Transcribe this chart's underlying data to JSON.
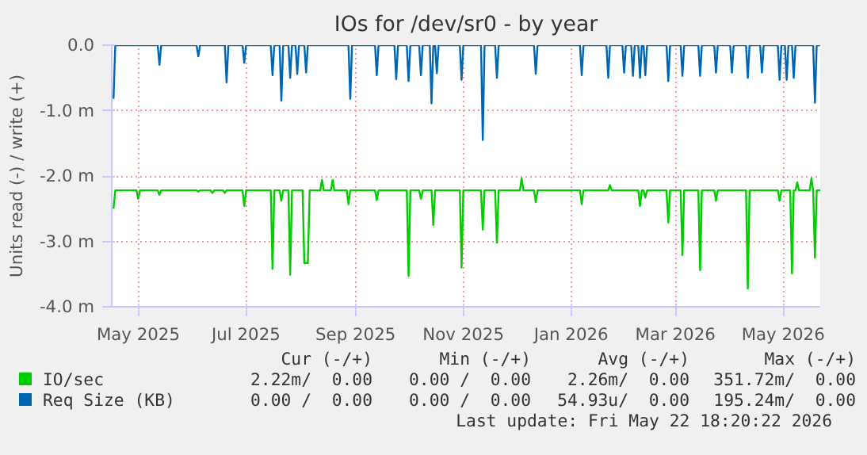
{
  "chart_data": {
    "type": "line",
    "title": "IOs for /dev/sr0 - by year",
    "ylabel": "Units read (-) / write (+)",
    "xlim": [
      "2025-04-16",
      "2026-05-22"
    ],
    "ylim": [
      -4.0,
      0.0
    ],
    "xticks": [
      {
        "value": "2025-05-01",
        "label": "May 2025"
      },
      {
        "value": "2025-07-01",
        "label": "Jul 2025"
      },
      {
        "value": "2025-09-01",
        "label": "Sep 2025"
      },
      {
        "value": "2025-11-01",
        "label": "Nov 2025"
      },
      {
        "value": "2026-01-01",
        "label": "Jan 2026"
      },
      {
        "value": "2026-03-01",
        "label": "Mar 2026"
      },
      {
        "value": "2026-05-01",
        "label": "May 2026"
      }
    ],
    "yticks": [
      {
        "value": 0,
        "label": "0.0"
      },
      {
        "value": -1,
        "label": "-1.0 m"
      },
      {
        "value": -2,
        "label": "-2.0 m"
      },
      {
        "value": -3,
        "label": "-3.0 m"
      },
      {
        "value": -4,
        "label": "-4.0 m"
      }
    ],
    "grid": true,
    "legend": "bottom",
    "marker": "none",
    "line_style": "solid",
    "series": [
      {
        "name": "IO/sec",
        "color": "#00cc00",
        "x": [
          "2025-04-17",
          "2025-04-18",
          "2025-04-30",
          "2025-05-01",
          "2025-05-02",
          "2025-05-12",
          "2025-05-13",
          "2025-05-14",
          "2025-06-03",
          "2025-06-04",
          "2025-06-05",
          "2025-06-11",
          "2025-06-12",
          "2025-06-13",
          "2025-06-18",
          "2025-06-19",
          "2025-06-20",
          "2025-06-29",
          "2025-06-30",
          "2025-07-01",
          "2025-07-15",
          "2025-07-16",
          "2025-07-17",
          "2025-07-20",
          "2025-07-21",
          "2025-07-22",
          "2025-07-25",
          "2025-07-26",
          "2025-07-27",
          "2025-08-02",
          "2025-08-03",
          "2025-08-05",
          "2025-08-06",
          "2025-08-12",
          "2025-08-13",
          "2025-08-14",
          "2025-08-18",
          "2025-08-19",
          "2025-08-20",
          "2025-08-27",
          "2025-08-28",
          "2025-08-29",
          "2025-09-12",
          "2025-09-13",
          "2025-09-14",
          "2025-09-30",
          "2025-10-01",
          "2025-10-02",
          "2025-10-07",
          "2025-10-08",
          "2025-10-09",
          "2025-10-14",
          "2025-10-15",
          "2025-10-16",
          "2025-10-30",
          "2025-10-31",
          "2025-11-01",
          "2025-11-11",
          "2025-11-12",
          "2025-11-13",
          "2025-11-19",
          "2025-11-20",
          "2025-11-21",
          "2025-12-03",
          "2025-12-04",
          "2025-12-05",
          "2025-12-11",
          "2025-12-12",
          "2025-12-13",
          "2026-01-06",
          "2026-01-07",
          "2026-01-08",
          "2026-01-22",
          "2026-01-23",
          "2026-01-24",
          "2026-02-08",
          "2026-02-09",
          "2026-02-10",
          "2026-02-11",
          "2026-02-12",
          "2026-02-13",
          "2026-02-24",
          "2026-02-25",
          "2026-02-26",
          "2026-03-04",
          "2026-03-05",
          "2026-03-06",
          "2026-03-14",
          "2026-03-15",
          "2026-03-16",
          "2026-03-23",
          "2026-03-24",
          "2026-03-25",
          "2026-04-10",
          "2026-04-11",
          "2026-04-12",
          "2026-04-28",
          "2026-04-29",
          "2026-04-30",
          "2026-05-05",
          "2026-05-06",
          "2026-05-07",
          "2026-05-08",
          "2026-05-09",
          "2026-05-10",
          "2026-05-16",
          "2026-05-17",
          "2026-05-18",
          "2026-05-19",
          "2026-05-20",
          "2026-05-22"
        ],
        "values": [
          -2.5,
          -2.22,
          -2.22,
          -2.35,
          -2.22,
          -2.22,
          -2.29,
          -2.22,
          -2.22,
          -2.24,
          -2.22,
          -2.22,
          -2.26,
          -2.22,
          -2.22,
          -2.26,
          -2.22,
          -2.22,
          -2.46,
          -2.22,
          -2.22,
          -3.42,
          -2.22,
          -2.22,
          -2.38,
          -2.22,
          -2.22,
          -3.51,
          -2.22,
          -2.22,
          -3.33,
          -3.33,
          -2.22,
          -2.22,
          -2.06,
          -2.22,
          -2.22,
          -2.06,
          -2.22,
          -2.22,
          -2.43,
          -2.22,
          -2.22,
          -2.37,
          -2.22,
          -2.22,
          -3.53,
          -2.22,
          -2.22,
          -2.35,
          -2.22,
          -2.22,
          -2.75,
          -2.22,
          -2.22,
          -3.4,
          -2.22,
          -2.22,
          -2.82,
          -2.22,
          -2.22,
          -3.02,
          -2.22,
          -2.22,
          -2.04,
          -2.22,
          -2.22,
          -2.4,
          -2.22,
          -2.22,
          -2.43,
          -2.22,
          -2.22,
          -2.14,
          -2.22,
          -2.22,
          -2.46,
          -2.22,
          -2.22,
          -2.33,
          -2.22,
          -2.22,
          -2.71,
          -2.22,
          -2.22,
          -3.21,
          -2.22,
          -2.22,
          -3.44,
          -2.22,
          -2.22,
          -2.38,
          -2.22,
          -2.22,
          -3.72,
          -2.22,
          -2.22,
          -2.38,
          -2.22,
          -2.22,
          -3.49,
          -2.22,
          -2.22,
          -2.1,
          -2.22,
          -2.22,
          -2.04,
          -2.22,
          -3.25,
          -2.22,
          -2.22
        ]
      },
      {
        "name": "Req Size (KB)",
        "color": "#0066b3",
        "x": [
          "2025-04-17",
          "2025-04-18",
          "2025-05-12",
          "2025-05-13",
          "2025-05-14",
          "2025-06-03",
          "2025-06-04",
          "2025-06-05",
          "2025-06-19",
          "2025-06-20",
          "2025-06-21",
          "2025-06-29",
          "2025-06-30",
          "2025-07-01",
          "2025-07-15",
          "2025-07-16",
          "2025-07-17",
          "2025-07-20",
          "2025-07-21",
          "2025-07-22",
          "2025-07-25",
          "2025-07-26",
          "2025-07-27",
          "2025-07-29",
          "2025-07-30",
          "2025-07-31",
          "2025-08-03",
          "2025-08-04",
          "2025-08-05",
          "2025-08-28",
          "2025-08-29",
          "2025-08-30",
          "2025-09-12",
          "2025-09-13",
          "2025-09-14",
          "2025-09-23",
          "2025-09-24",
          "2025-09-25",
          "2025-09-30",
          "2025-10-01",
          "2025-10-02",
          "2025-10-07",
          "2025-10-08",
          "2025-10-09",
          "2025-10-13",
          "2025-10-14",
          "2025-10-15",
          "2025-10-16",
          "2025-10-17",
          "2025-10-18",
          "2025-10-30",
          "2025-10-31",
          "2025-11-01",
          "2025-11-11",
          "2025-11-12",
          "2025-11-13",
          "2025-11-19",
          "2025-11-20",
          "2025-11-21",
          "2025-12-11",
          "2025-12-12",
          "2025-12-13",
          "2026-01-06",
          "2026-01-07",
          "2026-01-08",
          "2026-01-21",
          "2026-01-22",
          "2026-01-23",
          "2026-01-30",
          "2026-01-31",
          "2026-02-01",
          "2026-02-04",
          "2026-02-05",
          "2026-02-06",
          "2026-02-08",
          "2026-02-09",
          "2026-02-10",
          "2026-02-11",
          "2026-02-12",
          "2026-02-13",
          "2026-02-24",
          "2026-02-25",
          "2026-02-26",
          "2026-03-04",
          "2026-03-05",
          "2026-03-06",
          "2026-03-14",
          "2026-03-15",
          "2026-03-16",
          "2026-03-23",
          "2026-03-24",
          "2026-03-25",
          "2026-04-01",
          "2026-04-02",
          "2026-04-03",
          "2026-04-10",
          "2026-04-11",
          "2026-04-12",
          "2026-04-18",
          "2026-04-19",
          "2026-04-20",
          "2026-04-28",
          "2026-04-29",
          "2026-04-30",
          "2026-05-02",
          "2026-05-03",
          "2026-05-04",
          "2026-05-06",
          "2026-05-07",
          "2026-05-08",
          "2026-05-18",
          "2026-05-19",
          "2026-05-20",
          "2026-05-22"
        ],
        "values": [
          -0.82,
          0,
          0,
          -0.3,
          0,
          0,
          -0.17,
          0,
          0,
          -0.57,
          0,
          0,
          -0.27,
          0,
          0,
          -0.46,
          0,
          0,
          -0.85,
          0,
          0,
          -0.5,
          0,
          0,
          -0.44,
          0,
          0,
          -0.42,
          0,
          0,
          -0.82,
          0,
          0,
          -0.46,
          0,
          0,
          -0.52,
          0,
          0,
          -0.55,
          0,
          0,
          -0.46,
          0,
          0,
          -0.89,
          0,
          0,
          -0.43,
          0,
          0,
          -0.53,
          0,
          0,
          -1.45,
          0,
          0,
          -0.5,
          0,
          0,
          -0.44,
          0,
          0,
          -0.46,
          0,
          0,
          -0.5,
          0,
          0,
          -0.42,
          0,
          0,
          -0.47,
          0,
          0,
          -0.5,
          0,
          0,
          -0.46,
          0,
          0,
          -0.55,
          0,
          0,
          -0.47,
          0,
          0,
          -0.47,
          0,
          0,
          -0.42,
          0,
          0,
          -0.42,
          0,
          0,
          -0.5,
          0,
          0,
          -0.42,
          0,
          0,
          -0.53,
          0,
          0,
          -0.53,
          0,
          0,
          -0.5,
          0,
          0,
          -0.88,
          0,
          0
        ]
      }
    ],
    "annotations": [
      "Cur (-/+)",
      "Min (-/+)",
      "Avg (-/+)",
      "Max (-/+)",
      "2.22m/  0.00",
      "0.00 /  0.00",
      "2.26m/  0.00",
      "351.72m/  0.00",
      "0.00 /  0.00",
      "0.00 /  0.00",
      "54.93u/  0.00",
      "195.24m/  0.00",
      "Last update: Fri May 22 18:20:22 2026"
    ]
  }
}
